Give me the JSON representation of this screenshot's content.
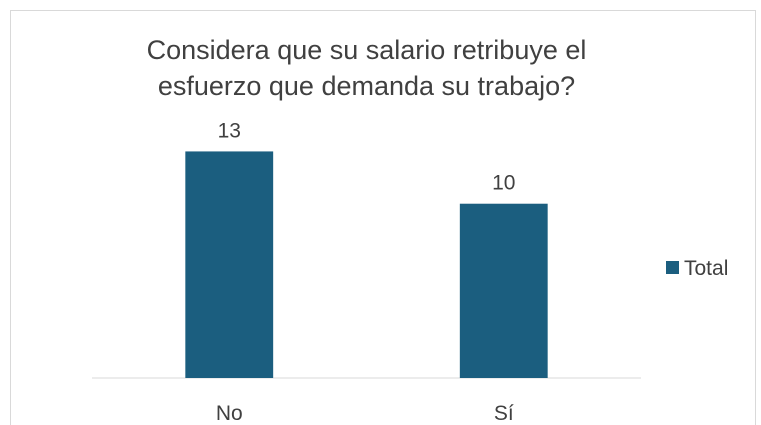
{
  "chart_data": {
    "type": "bar",
    "title": "Considera que su salario retribuye el esfuerzo que demanda su trabajo?",
    "categories": [
      "No",
      "Sí"
    ],
    "series": [
      {
        "name": "Total",
        "color": "#1b5e7f",
        "values": [
          13,
          10
        ]
      }
    ],
    "ylim": [
      0,
      14
    ],
    "legend": "right"
  }
}
